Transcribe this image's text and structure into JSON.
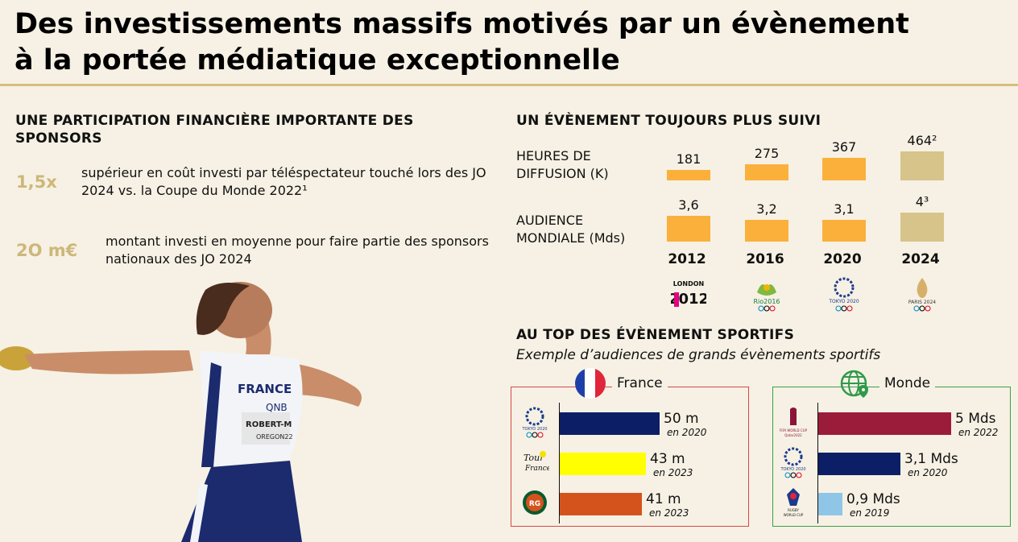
{
  "title": {
    "line1": "Des investissements massifs motivés par un évènement",
    "line2": "à la portée médiatique exceptionnelle"
  },
  "left": {
    "heading": "UNE PARTICIPATION FINANCIÈRE IMPORTANTE DES SPONSORS",
    "stats": [
      {
        "value": "1,5x",
        "text": "supérieur en coût investi par téléspectateur touché lors des JO 2024 vs. la Coupe du Monde 2022¹"
      },
      {
        "value": "2O m€",
        "text": "montant investi en moyenne pour faire partie des sponsors nationaux des JO 2024"
      }
    ],
    "athlete": {
      "jersey": "FRANCE",
      "sponsor": "QNB",
      "bib_name": "ROBERT-M",
      "bib_sub": "OREGON22"
    }
  },
  "right": {
    "heading": "UN ÉVÈNEMENT TOUJOURS PLUS SUIVI",
    "rows": [
      {
        "label_line1": "HEURES DE",
        "label_line2": "DIFFUSION (K)"
      },
      {
        "label_line1": "AUDIENCE",
        "label_line2": "MONDIALE (Mds)"
      }
    ],
    "years": [
      {
        "year": "2012",
        "hours": "181",
        "audience": "3,6",
        "logo": "london-2012-logo"
      },
      {
        "year": "2016",
        "hours": "275",
        "audience": "3,2",
        "logo": "rio-2016-logo"
      },
      {
        "year": "2020",
        "hours": "367",
        "audience": "3,1",
        "logo": "tokyo-2020-logo"
      },
      {
        "year": "2024",
        "hours": "464²",
        "audience": "4³",
        "logo": "paris-2024-logo"
      }
    ],
    "logo_texts": {
      "london": "LONDON 2012",
      "rio": "Rio2016",
      "tokyo": "TOKYO 2020",
      "paris": "PARIS 2024"
    },
    "colors": {
      "past": "#fbb03b",
      "current": "#d6c48a"
    }
  },
  "events": {
    "heading": "AU TOP DES ÉVÈNEMENT SPORTIFS",
    "subtitle": "Exemple d’audiences de grands évènements sportifs",
    "france": {
      "title": "France",
      "items": [
        {
          "value": "50 m",
          "sub": "en 2020",
          "amount": 50,
          "color": "#0c1f66",
          "logo": "tokyo-2020-logo",
          "logo_text": "TOKYO 2020"
        },
        {
          "value": "43 m",
          "sub": "en 2023",
          "amount": 43,
          "color": "#ffff00",
          "logo": "tour-de-france-logo",
          "logo_text": "Tour de France"
        },
        {
          "value": "41 m",
          "sub": "en 2023",
          "amount": 41,
          "color": "#d4531c",
          "logo": "roland-garros-logo",
          "logo_text": "RG"
        }
      ],
      "border": "#d6474a"
    },
    "monde": {
      "title": "Monde",
      "items": [
        {
          "value": "5 Mds",
          "sub": "en 2022",
          "amount": 5,
          "color": "#9b1b3b",
          "logo": "fifa-world-cup-2022-logo",
          "logo_text": "FIFA WORLD CUP Qatar2022"
        },
        {
          "value": "3,1 Mds",
          "sub": "en 2020",
          "amount": 3.1,
          "color": "#0c1f66",
          "logo": "tokyo-2020-logo",
          "logo_text": "TOKYO 2020"
        },
        {
          "value": "0,9 Mds",
          "sub": "en 2019",
          "amount": 0.9,
          "color": "#8fc6e8",
          "logo": "rugby-world-cup-logo",
          "logo_text": "RUGBY WORLD CUP JAPAN 2019"
        }
      ],
      "border": "#3aa04a"
    }
  }
}
